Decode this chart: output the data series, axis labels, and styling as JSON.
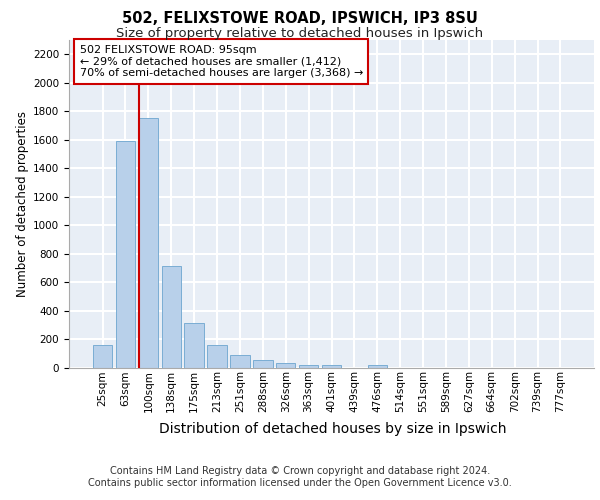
{
  "title_line1": "502, FELIXSTOWE ROAD, IPSWICH, IP3 8SU",
  "title_line2": "Size of property relative to detached houses in Ipswich",
  "xlabel": "Distribution of detached houses by size in Ipswich",
  "ylabel": "Number of detached properties",
  "categories": [
    "25sqm",
    "63sqm",
    "100sqm",
    "138sqm",
    "175sqm",
    "213sqm",
    "251sqm",
    "288sqm",
    "326sqm",
    "363sqm",
    "401sqm",
    "439sqm",
    "476sqm",
    "514sqm",
    "551sqm",
    "589sqm",
    "627sqm",
    "664sqm",
    "702sqm",
    "739sqm",
    "777sqm"
  ],
  "values": [
    160,
    1590,
    1755,
    710,
    315,
    160,
    88,
    55,
    30,
    20,
    20,
    0,
    20,
    0,
    0,
    0,
    0,
    0,
    0,
    0,
    0
  ],
  "bar_color": "#b8d0ea",
  "bar_edge_color": "#7aadd4",
  "red_line_index": 2,
  "annotation_text": "502 FELIXSTOWE ROAD: 95sqm\n← 29% of detached houses are smaller (1,412)\n70% of semi-detached houses are larger (3,368) →",
  "annotation_box_facecolor": "#ffffff",
  "annotation_box_edgecolor": "#cc0000",
  "ylim": [
    0,
    2300
  ],
  "yticks": [
    0,
    200,
    400,
    600,
    800,
    1000,
    1200,
    1400,
    1600,
    1800,
    2000,
    2200
  ],
  "plot_bg_color": "#e8eef6",
  "grid_color": "#ffffff",
  "footer_line1": "Contains HM Land Registry data © Crown copyright and database right 2024.",
  "footer_line2": "Contains public sector information licensed under the Open Government Licence v3.0.",
  "title_fontsize": 10.5,
  "subtitle_fontsize": 9.5,
  "xlabel_fontsize": 10,
  "ylabel_fontsize": 8.5,
  "tick_fontsize": 7.5,
  "annotation_fontsize": 8,
  "footer_fontsize": 7
}
